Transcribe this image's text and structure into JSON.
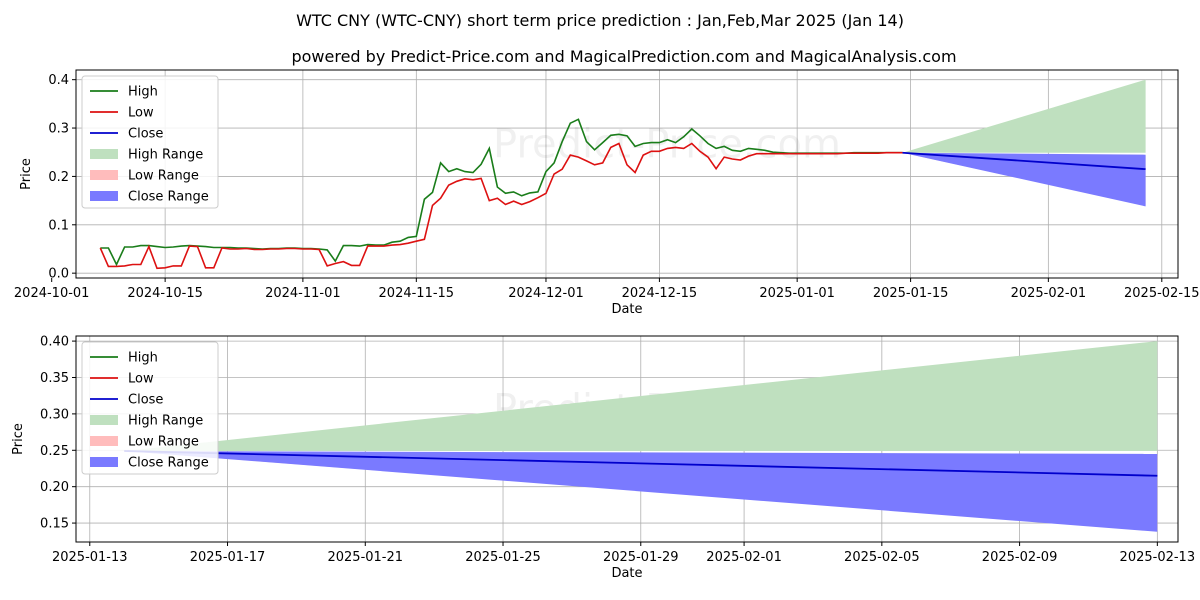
{
  "title": "WTC CNY (WTC-CNY) short term price prediction : Jan,Feb,Mar 2025 (Jan 14)",
  "subtitle": "powered by Predict-Price.com and MagicalPrediction.com and MagicalAnalysis.com",
  "watermark": "Predict-Price.com",
  "colors": {
    "high": "#1a7d1a",
    "low": "#dd1111",
    "close": "#0000cc",
    "high_range": "#bfe0bf",
    "low_range": "#ffbcbc",
    "close_range": "#7a7aff",
    "grid": "#b0b0b0"
  },
  "chart_data": [
    {
      "type": "line",
      "name": "history-and-forecast",
      "xlabel": "Date",
      "ylabel": "Price",
      "xlim": [
        "2024-10-04",
        "2025-02-17"
      ],
      "ylim": [
        -0.01,
        0.42
      ],
      "x_ticks": [
        "2024-10-01",
        "2024-10-15",
        "2024-11-01",
        "2024-11-15",
        "2024-12-01",
        "2024-12-15",
        "2025-01-01",
        "2025-01-15",
        "2025-02-01",
        "2025-02-15"
      ],
      "y_ticks": [
        0.0,
        0.1,
        0.2,
        0.3,
        0.4
      ],
      "y_tick_labels": [
        "0.0",
        "0.1",
        "0.2",
        "0.3",
        "0.4"
      ],
      "legend": [
        "High",
        "Low",
        "Close",
        "High Range",
        "Low Range",
        "Close Range"
      ],
      "legend_position": "top-left",
      "grid": true,
      "history": {
        "start": "2024-10-07",
        "high": [
          0.052,
          0.052,
          0.018,
          0.054,
          0.054,
          0.057,
          0.057,
          0.055,
          0.053,
          0.054,
          0.056,
          0.057,
          0.056,
          0.055,
          0.053,
          0.053,
          0.053,
          0.052,
          0.052,
          0.051,
          0.05,
          0.051,
          0.051,
          0.052,
          0.052,
          0.051,
          0.051,
          0.05,
          0.048,
          0.025,
          0.057,
          0.057,
          0.056,
          0.059,
          0.058,
          0.058,
          0.064,
          0.066,
          0.074,
          0.076,
          0.153,
          0.167,
          0.228,
          0.21,
          0.216,
          0.21,
          0.208,
          0.225,
          0.258,
          0.178,
          0.165,
          0.168,
          0.16,
          0.166,
          0.168,
          0.21,
          0.228,
          0.272,
          0.31,
          0.318,
          0.272,
          0.255,
          0.27,
          0.285,
          0.287,
          0.284,
          0.262,
          0.268,
          0.27,
          0.27,
          0.276,
          0.27,
          0.282,
          0.298,
          0.284,
          0.268,
          0.258,
          0.262,
          0.254,
          0.252,
          0.258,
          0.256,
          0.254,
          0.25,
          0.249,
          0.248,
          0.248,
          0.248,
          0.248,
          0.248,
          0.248,
          0.248,
          0.248,
          0.249,
          0.249,
          0.249,
          0.249,
          0.249,
          0.249,
          0.249
        ],
        "low": [
          0.052,
          0.014,
          0.014,
          0.015,
          0.018,
          0.018,
          0.055,
          0.01,
          0.011,
          0.015,
          0.015,
          0.056,
          0.055,
          0.011,
          0.011,
          0.052,
          0.05,
          0.05,
          0.051,
          0.049,
          0.049,
          0.05,
          0.05,
          0.051,
          0.051,
          0.05,
          0.05,
          0.049,
          0.015,
          0.02,
          0.024,
          0.016,
          0.016,
          0.056,
          0.056,
          0.056,
          0.058,
          0.059,
          0.062,
          0.066,
          0.07,
          0.14,
          0.155,
          0.182,
          0.19,
          0.195,
          0.193,
          0.196,
          0.15,
          0.155,
          0.142,
          0.149,
          0.142,
          0.148,
          0.156,
          0.165,
          0.205,
          0.215,
          0.244,
          0.24,
          0.232,
          0.224,
          0.228,
          0.26,
          0.268,
          0.224,
          0.208,
          0.244,
          0.252,
          0.252,
          0.258,
          0.26,
          0.258,
          0.268,
          0.252,
          0.24,
          0.216,
          0.24,
          0.236,
          0.234,
          0.242,
          0.247,
          0.247,
          0.247,
          0.247,
          0.247,
          0.247,
          0.247,
          0.247,
          0.247,
          0.247,
          0.247,
          0.248,
          0.248,
          0.248,
          0.248,
          0.248,
          0.249,
          0.249,
          0.249
        ]
      },
      "forecast": {
        "start": "2025-01-14",
        "end": "2025-02-13",
        "close": [
          0.249,
          0.215
        ],
        "high_range": [
          [
            0.249,
            0.249
          ],
          [
            0.249,
            0.4
          ]
        ],
        "low_range": [
          [
            0.249,
            0.249
          ],
          [
            0.14,
            0.243
          ]
        ],
        "close_range": [
          [
            0.249,
            0.249
          ],
          [
            0.138,
            0.245
          ]
        ]
      }
    },
    {
      "type": "area",
      "name": "forecast-zoom",
      "xlabel": "Date",
      "ylabel": "Price",
      "xlim": [
        "2025-01-12.6",
        "2025-02-13.6"
      ],
      "ylim": [
        0.124,
        0.407
      ],
      "x_ticks": [
        "2025-01-13",
        "2025-01-17",
        "2025-01-21",
        "2025-01-25",
        "2025-01-29",
        "2025-02-01",
        "2025-02-05",
        "2025-02-09",
        "2025-02-13"
      ],
      "y_ticks": [
        0.15,
        0.2,
        0.25,
        0.3,
        0.35,
        0.4
      ],
      "y_tick_labels": [
        "0.15",
        "0.20",
        "0.25",
        "0.30",
        "0.35",
        "0.40"
      ],
      "legend": [
        "High",
        "Low",
        "Close",
        "High Range",
        "Low Range",
        "Close Range"
      ],
      "legend_position": "top-left",
      "grid": true
    }
  ]
}
